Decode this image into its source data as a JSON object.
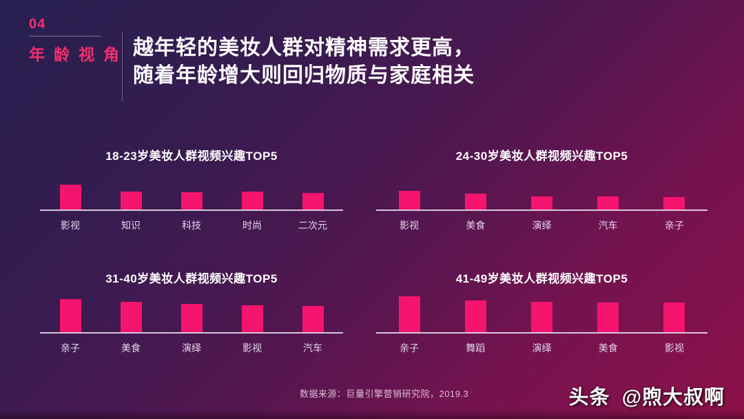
{
  "header": {
    "section_number": "04",
    "section_label": "年龄视角",
    "title_line1": "越年轻的美妆人群对精神需求更高，",
    "title_line2": "随着年龄增大则回归物质与家庭相关"
  },
  "chart_data": [
    {
      "type": "bar",
      "title": "18-23岁美妆人群视频兴趣TOP5",
      "categories": [
        "影视",
        "知识",
        "科技",
        "时尚",
        "二次元"
      ],
      "values": [
        36,
        26,
        25,
        26,
        24
      ],
      "xlabel": "",
      "ylabel": "",
      "ylim": [
        0,
        62
      ],
      "grid": false,
      "legend": "none",
      "note": "no numeric axis shown; values are relative bar heights in px"
    },
    {
      "type": "bar",
      "title": "24-30岁美妆人群视频兴趣TOP5",
      "categories": [
        "影视",
        "美食",
        "演绎",
        "汽车",
        "亲子"
      ],
      "values": [
        27,
        23,
        19,
        19,
        18
      ],
      "xlabel": "",
      "ylabel": "",
      "ylim": [
        0,
        62
      ],
      "grid": false,
      "legend": "none",
      "note": "no numeric axis shown; values are relative bar heights in px"
    },
    {
      "type": "bar",
      "title": "31-40岁美妆人群视频兴趣TOP5",
      "categories": [
        "亲子",
        "美食",
        "演绎",
        "影视",
        "汽车"
      ],
      "values": [
        48,
        44,
        41,
        39,
        38
      ],
      "xlabel": "",
      "ylabel": "",
      "ylim": [
        0,
        62
      ],
      "grid": false,
      "legend": "none",
      "note": "no numeric axis shown; values are relative bar heights in px"
    },
    {
      "type": "bar",
      "title": "41-49岁美妆人群视频兴趣TOP5",
      "categories": [
        "亲子",
        "舞蹈",
        "演绎",
        "美食",
        "影视"
      ],
      "values": [
        52,
        46,
        44,
        43,
        43
      ],
      "xlabel": "",
      "ylabel": "",
      "ylim": [
        0,
        62
      ],
      "grid": false,
      "legend": "none",
      "note": "no numeric axis shown; values are relative bar heights in px"
    }
  ],
  "footer": {
    "source": "数据来源：巨量引擎营销研究院，2019.3"
  },
  "watermark": {
    "brand": "头条",
    "handle": "@煦大叔啊"
  },
  "colors": {
    "accent_pink": "#f42f6e",
    "bar_pink": "#f5146e",
    "bg_top_left": "#262050",
    "bg_bottom_right": "#8e1149",
    "axis_line": "#eee8f6",
    "label_text": "#e3d5ea"
  }
}
